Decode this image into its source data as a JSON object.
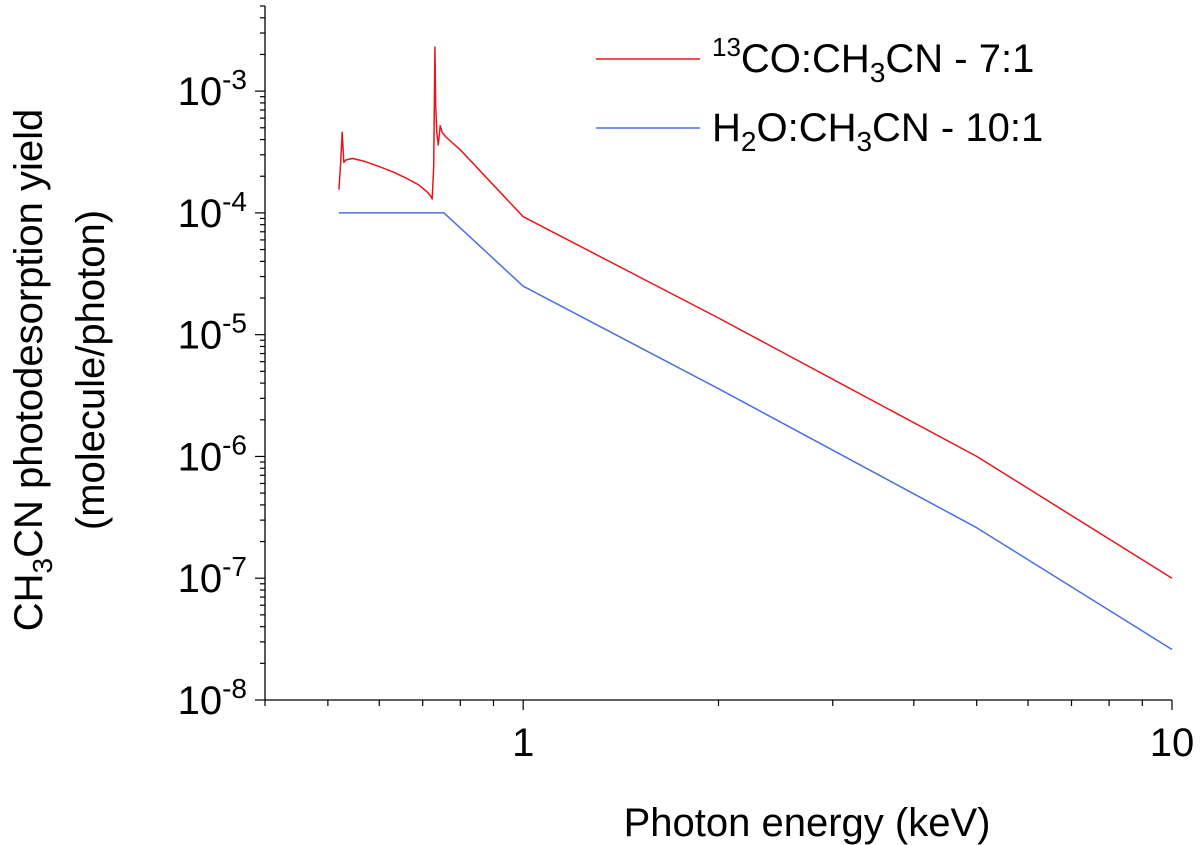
{
  "chart_data": {
    "type": "line",
    "title": "",
    "xlabel": "Photon energy (keV)",
    "ylabel": {
      "line1": {
        "pre": "CH",
        "sub": "3",
        "post": "CN photodesorption yield"
      },
      "line2": "(molecule/photon)"
    },
    "x_scale": "log",
    "y_scale": "log",
    "xlim": [
      0.4,
      10
    ],
    "ylim": [
      1e-08,
      0.005
    ],
    "x_ticks": [
      {
        "value": 1,
        "label": "1"
      },
      {
        "value": 10,
        "label": "10"
      }
    ],
    "y_ticks": [
      {
        "value": 1e-08,
        "base": "10",
        "exp": "-8"
      },
      {
        "value": 1e-07,
        "base": "10",
        "exp": "-7"
      },
      {
        "value": 1e-06,
        "base": "10",
        "exp": "-6"
      },
      {
        "value": 1e-05,
        "base": "10",
        "exp": "-5"
      },
      {
        "value": 0.0001,
        "base": "10",
        "exp": "-4"
      },
      {
        "value": 0.001,
        "base": "10",
        "exp": "-3"
      }
    ],
    "grid": false,
    "legend_position": "top-right",
    "series": [
      {
        "name": "13CO:CH3CN - 7:1",
        "legend": {
          "sup": "13",
          "pre": "CO:CH",
          "sub": "3",
          "post": "CN - 7:1"
        },
        "color": "#e8161a",
        "points": [
          [
            0.52,
            0.000155
          ],
          [
            0.523,
            0.000245
          ],
          [
            0.526,
            0.00046
          ],
          [
            0.529,
            0.00026
          ],
          [
            0.533,
            0.000272
          ],
          [
            0.545,
            0.00028
          ],
          [
            0.57,
            0.000265
          ],
          [
            0.6,
            0.00024
          ],
          [
            0.63,
            0.000217
          ],
          [
            0.66,
            0.000193
          ],
          [
            0.69,
            0.00017
          ],
          [
            0.71,
            0.00015
          ],
          [
            0.72,
            0.000138
          ],
          [
            0.724,
            0.00013
          ],
          [
            0.728,
            0.00024
          ],
          [
            0.731,
            0.0023
          ],
          [
            0.733,
            0.00075
          ],
          [
            0.736,
            0.00046
          ],
          [
            0.74,
            0.00036
          ],
          [
            0.745,
            0.00052
          ],
          [
            0.75,
            0.00046
          ],
          [
            0.76,
            0.00042
          ],
          [
            0.8,
            0.00033
          ],
          [
            1.0,
            9.3e-05
          ],
          [
            2.0,
            1.37e-05
          ],
          [
            5.0,
            1e-06
          ],
          [
            10.0,
            1e-07
          ]
        ]
      },
      {
        "name": "H2O:CH3CN - 10:1",
        "legend": {
          "sup": "",
          "pre": "H",
          "sub": "2",
          "post": "O:CH",
          "sub2": "3",
          "post2": "CN - 10:1"
        },
        "color": "#4a6fe3",
        "points": [
          [
            0.52,
            0.0001
          ],
          [
            0.755,
            0.0001
          ],
          [
            1.0,
            2.5e-05
          ],
          [
            2.0,
            3.6e-06
          ],
          [
            5.0,
            2.6e-07
          ],
          [
            10.0,
            2.6e-08
          ]
        ]
      }
    ]
  }
}
